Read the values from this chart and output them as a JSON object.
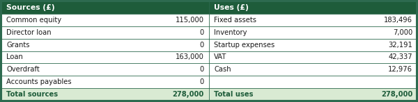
{
  "header_bg": "#1e5c3a",
  "header_text_color": "#ffffff",
  "row_bg": "#ffffff",
  "total_bg": "#d9ead3",
  "total_text_color": "#1e5c3a",
  "border_color": "#2d6a4f",
  "text_color": "#1a1a1a",
  "header_left": "Sources (£)",
  "header_right": "Uses (£)",
  "rows": [
    [
      "Common equity",
      "115,000",
      "Fixed assets",
      "183,496"
    ],
    [
      "Director loan",
      "0",
      "Inventory",
      "7,000"
    ],
    [
      "Grants",
      "0",
      "Startup expenses",
      "32,191"
    ],
    [
      "Loan",
      "163,000",
      "VAT",
      "42,337"
    ],
    [
      "Overdraft",
      "0",
      "Cash",
      "12,976"
    ],
    [
      "Accounts payables",
      "0",
      "",
      ""
    ],
    [
      "Total sources",
      "278,000",
      "Total uses",
      "278,000"
    ]
  ],
  "figsize": [
    6.0,
    1.47
  ],
  "dpi": 100
}
